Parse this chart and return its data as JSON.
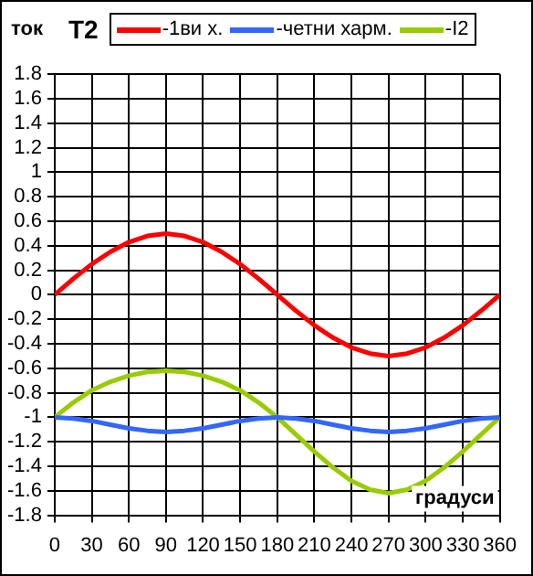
{
  "chart_data": {
    "type": "line",
    "title": "T2",
    "ylabel": "ток",
    "xlabel": "градуси",
    "x": [
      0,
      15,
      30,
      45,
      60,
      75,
      90,
      105,
      120,
      135,
      150,
      165,
      180,
      195,
      210,
      225,
      240,
      255,
      270,
      285,
      300,
      315,
      330,
      345,
      360
    ],
    "series": [
      {
        "name": "-1ви х.",
        "color": "#ff0000",
        "values": [
          0,
          0.13,
          0.25,
          0.35,
          0.43,
          0.48,
          0.5,
          0.48,
          0.43,
          0.35,
          0.25,
          0.13,
          0,
          -0.13,
          -0.25,
          -0.35,
          -0.43,
          -0.48,
          -0.5,
          -0.48,
          -0.43,
          -0.35,
          -0.25,
          -0.13,
          0
        ]
      },
      {
        "name": "-четни харм.",
        "color": "#3366ff",
        "values": [
          -1,
          -1.01,
          -1.03,
          -1.06,
          -1.09,
          -1.11,
          -1.12,
          -1.11,
          -1.09,
          -1.06,
          -1.03,
          -1.01,
          -1,
          -1.01,
          -1.03,
          -1.06,
          -1.09,
          -1.11,
          -1.12,
          -1.11,
          -1.09,
          -1.06,
          -1.03,
          -1.01,
          -1
        ]
      },
      {
        "name": "-I2",
        "color": "#99cc00",
        "values": [
          -1,
          -0.88,
          -0.78,
          -0.71,
          -0.66,
          -0.63,
          -0.62,
          -0.63,
          -0.66,
          -0.71,
          -0.78,
          -0.88,
          -1,
          -1.14,
          -1.28,
          -1.41,
          -1.52,
          -1.59,
          -1.62,
          -1.59,
          -1.52,
          -1.41,
          -1.28,
          -1.14,
          -1
        ]
      }
    ],
    "xlim": [
      0,
      360
    ],
    "xticks": [
      0,
      30,
      60,
      90,
      120,
      150,
      180,
      210,
      240,
      270,
      300,
      330,
      360
    ],
    "ylim": [
      -1.8,
      1.8
    ],
    "yticks": [
      -1.8,
      -1.6,
      -1.4,
      -1.2,
      -1,
      -0.8,
      -0.6,
      -0.4,
      -0.2,
      0,
      0.2,
      0.4,
      0.6,
      0.8,
      1,
      1.2,
      1.4,
      1.6,
      1.8
    ],
    "grid": true,
    "legend": "top",
    "marker": "none",
    "line_style": "solid"
  }
}
